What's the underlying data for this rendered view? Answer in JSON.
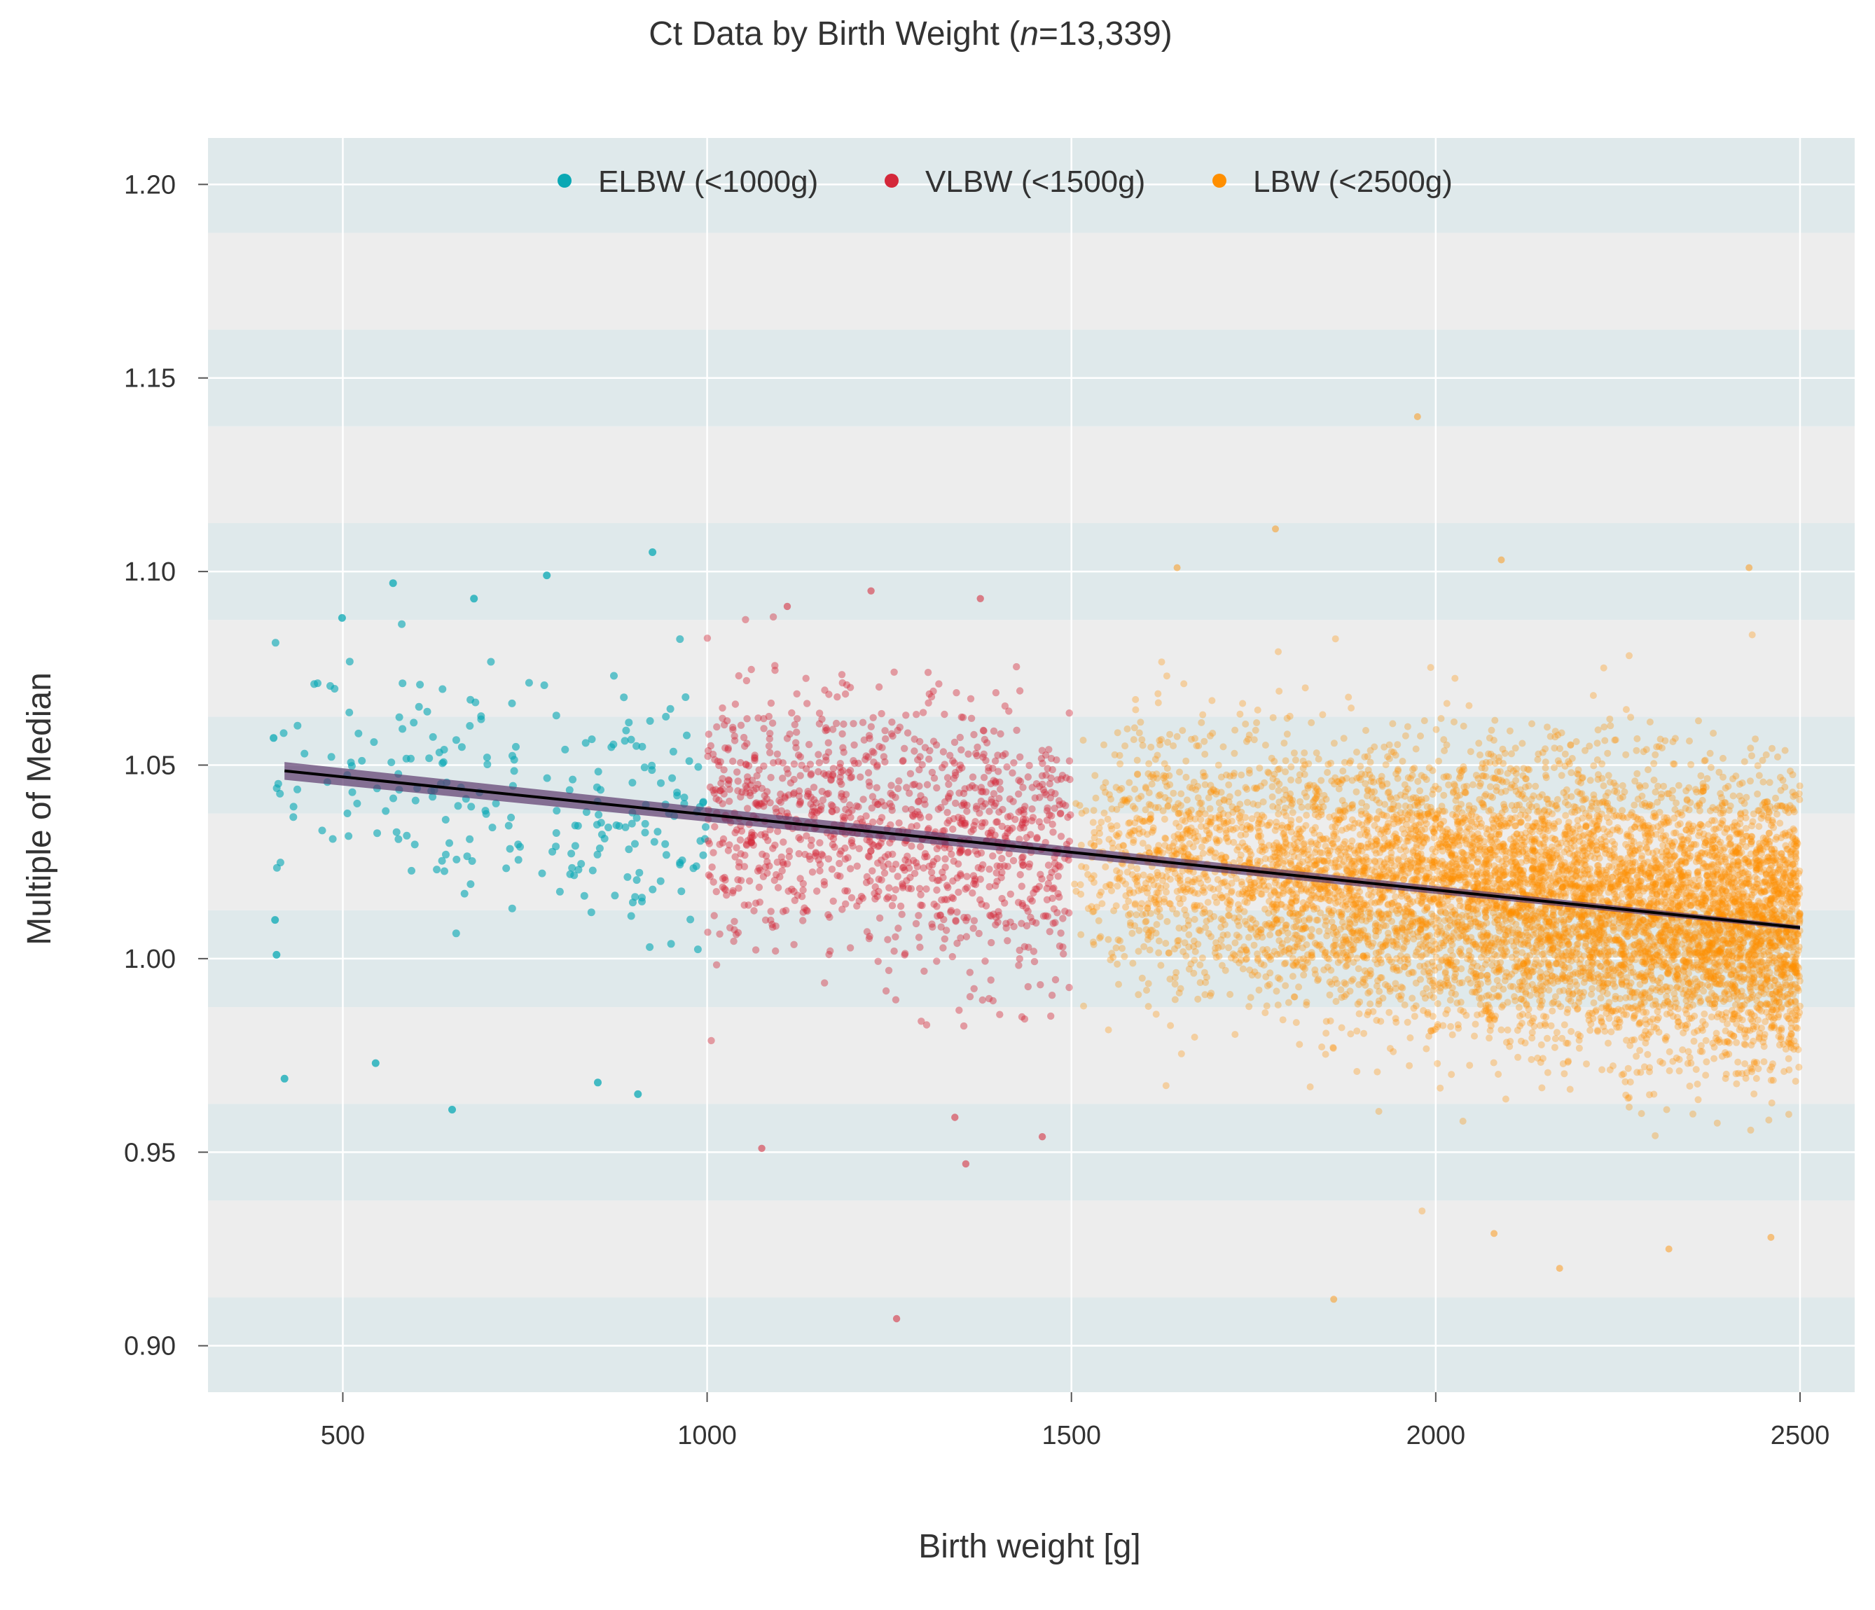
{
  "chart_data": {
    "type": "scatter",
    "title_prefix": "Ct Data by Birth Weight (",
    "title_italic": "n",
    "title_suffix": "=13,339)",
    "xlabel": "Birth weight [g]",
    "ylabel": "Multiple of Median",
    "xlim": [
      315,
      2575
    ],
    "ylim": [
      0.888,
      1.212
    ],
    "x_ticks": [
      500,
      1000,
      1500,
      2000,
      2500
    ],
    "y_ticks": [
      0.9,
      0.95,
      1.0,
      1.05,
      1.1,
      1.15,
      1.2
    ],
    "y_tick_labels": [
      "0.90",
      "0.95",
      "1.00",
      "1.05",
      "1.10",
      "1.15",
      "1.20"
    ],
    "x_tick_labels": [
      "500",
      "1000",
      "1500",
      "2000",
      "2500"
    ],
    "grid": true,
    "background_bands": [
      "#dfe9eb",
      "#ededed"
    ],
    "legend_position": "top-center",
    "series": [
      {
        "name": "ELBW (<1000g)",
        "color": "#0aa8b4",
        "x_range": [
          400,
          999
        ],
        "point_count": 230,
        "y_center": 1.04,
        "y_spread": 0.025,
        "sample_points": [
          [
            405,
            1.057
          ],
          [
            407,
            1.01
          ],
          [
            409,
            1.001
          ],
          [
            420,
            0.969
          ],
          [
            499,
            1.088
          ],
          [
            569,
            1.097
          ],
          [
            545,
            0.973
          ],
          [
            650,
            0.961
          ],
          [
            680,
            1.093
          ],
          [
            780,
            1.099
          ],
          [
            925,
            1.105
          ],
          [
            905,
            0.965
          ],
          [
            850,
            0.968
          ]
        ]
      },
      {
        "name": "VLBW (<1500g)",
        "color": "#d4283a",
        "x_range": [
          1000,
          1499
        ],
        "point_count": 1150,
        "y_center": 1.03,
        "y_spread": 0.027,
        "sample_points": [
          [
            1075,
            0.951
          ],
          [
            1260,
            0.907
          ],
          [
            1355,
            0.947
          ],
          [
            1225,
            1.095
          ],
          [
            1375,
            1.093
          ],
          [
            1110,
            1.091
          ],
          [
            1460,
            0.954
          ],
          [
            1340,
            0.959
          ]
        ]
      },
      {
        "name": "LBW (<2500g)",
        "color": "#ff8f00",
        "x_range": [
          1500,
          2500
        ],
        "point_count": 11959,
        "y_center": 1.015,
        "y_spread": 0.028,
        "sample_points": [
          [
            1975,
            1.14
          ],
          [
            1780,
            1.111
          ],
          [
            2090,
            1.103
          ],
          [
            1645,
            1.101
          ],
          [
            2430,
            1.101
          ],
          [
            1860,
            0.912
          ],
          [
            2170,
            0.92
          ],
          [
            2080,
            0.929
          ],
          [
            2320,
            0.925
          ],
          [
            2460,
            0.928
          ]
        ]
      }
    ],
    "trend_line": {
      "name": "fit",
      "color": "#000000",
      "x": [
        420,
        2500
      ],
      "y": [
        1.0485,
        1.008
      ],
      "ci_color": "#5c3a6e",
      "ci_halfwidth": [
        0.0023,
        0.0006
      ]
    }
  }
}
